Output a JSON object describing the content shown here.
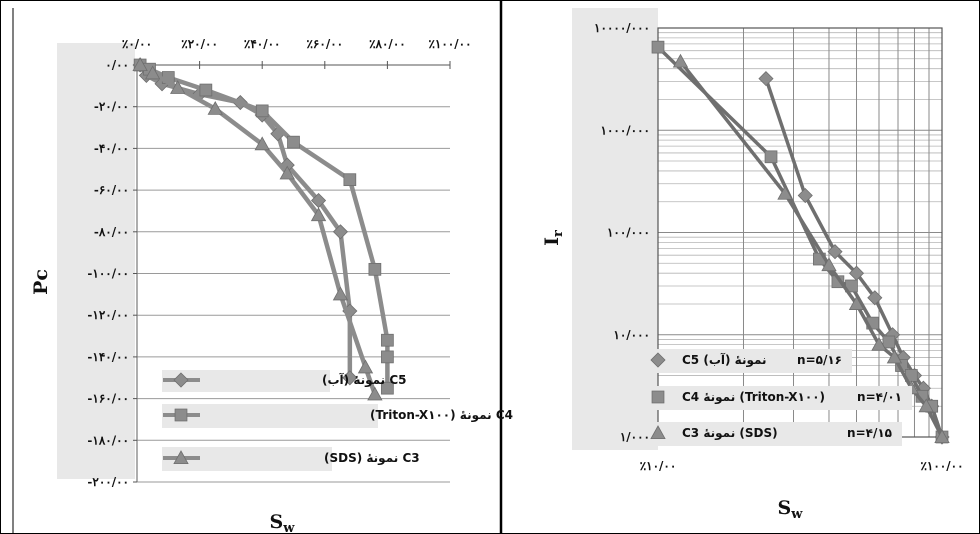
{
  "chart_data": [
    {
      "type": "line",
      "xlabel": "S",
      "xlabel_sub": "w",
      "ylabel": "Pc",
      "x_tick_labels": [
        "٪۰/۰۰",
        "٪۲۰/۰۰",
        "٪۴۰/۰۰",
        "٪۶۰/۰۰",
        "٪۸۰/۰۰",
        "٪۱۰۰/۰۰"
      ],
      "x_ticks": [
        0,
        20,
        40,
        60,
        80,
        100
      ],
      "y_tick_labels": [
        "۰/۰۰",
        "-۲۰/۰۰",
        "-۴۰/۰۰",
        "-۶۰/۰۰",
        "-۸۰/۰۰",
        "-۱۰۰/۰۰",
        "-۱۲۰/۰۰",
        "-۱۴۰/۰۰",
        "-۱۶۰/۰۰",
        "-۱۸۰/۰۰",
        "-۲۰۰/۰۰"
      ],
      "y_ticks": [
        0,
        -20,
        -40,
        -60,
        -80,
        -100,
        -120,
        -140,
        -160,
        -180,
        -200
      ],
      "xlim": [
        0,
        100
      ],
      "ylim": [
        -200,
        0
      ],
      "x_axis_position": "top",
      "grid": "horizontal",
      "legend_position": "bottom-left",
      "series": [
        {
          "name": "C5 نمونهٔ (آب)",
          "marker": "diamond",
          "color": "#8c8c8c",
          "x": [
            1,
            3,
            8,
            20,
            33,
            40,
            45,
            48,
            58,
            65,
            68,
            68
          ],
          "y": [
            0,
            -5,
            -9,
            -14,
            -18,
            -24,
            -33,
            -48,
            -65,
            -80,
            -118,
            -150
          ]
        },
        {
          "name": "C4 نمونهٔ (Triton-X۱۰۰)",
          "marker": "square",
          "color": "#8c8c8c",
          "x": [
            1,
            4,
            10,
            22,
            40,
            50,
            68,
            76,
            80,
            80,
            80
          ],
          "y": [
            0,
            -2,
            -6,
            -12,
            -22,
            -37,
            -55,
            -98,
            -132,
            -140,
            -155
          ]
        },
        {
          "name": "C3 نمونهٔ (SDS)",
          "marker": "triangle",
          "color": "#8c8c8c",
          "x": [
            1,
            5,
            13,
            25,
            40,
            48,
            58,
            65,
            73,
            76
          ],
          "y": [
            0,
            -4,
            -11,
            -21,
            -38,
            -52,
            -72,
            -110,
            -145,
            -158
          ]
        }
      ]
    },
    {
      "type": "line",
      "xlabel": "S",
      "xlabel_sub": "w",
      "ylabel": "I",
      "ylabel_sub": "r",
      "x_scale": "log",
      "y_scale": "log",
      "x_tick_labels": [
        "٪۱۰/۰۰",
        "٪۱۰۰/۰۰"
      ],
      "x_ticks": [
        10,
        100
      ],
      "y_tick_labels": [
        "۱/۰۰۰",
        "۱۰/۰۰۰",
        "۱۰۰/۰۰۰",
        "۱۰۰۰/۰۰۰",
        "۱۰۰۰۰/۰۰۰"
      ],
      "y_ticks": [
        1,
        10,
        100,
        1000,
        10000
      ],
      "xlim": [
        10,
        100
      ],
      "ylim": [
        1,
        10000
      ],
      "grid": "both",
      "legend_position": "bottom-left",
      "series": [
        {
          "name": "C5 نمونهٔ (آب)",
          "n_label": "n=۵/۱۶",
          "marker": "diamond",
          "color": "#8c8c8c",
          "x": [
            24,
            33,
            42,
            50,
            58,
            67,
            73,
            80,
            86,
            92,
            100
          ],
          "y": [
            3200,
            230,
            65,
            40,
            23,
            10,
            6,
            4,
            3,
            2,
            1
          ]
        },
        {
          "name": "C4 نمونهٔ (Triton-X۱۰۰)",
          "n_label": "n=۴/۰۱",
          "marker": "square",
          "color": "#8c8c8c",
          "x": [
            10,
            25,
            37,
            43,
            48,
            57,
            65,
            72,
            78,
            85,
            92,
            100
          ],
          "y": [
            6500,
            550,
            55,
            33,
            30,
            13,
            8.5,
            5,
            4,
            2.5,
            2,
            1
          ]
        },
        {
          "name": "C3 نمونهٔ (SDS)",
          "n_label": "n=۴/۱۵",
          "marker": "triangle",
          "color": "#8c8c8c",
          "x": [
            12,
            28,
            40,
            50,
            60,
            68,
            78,
            88,
            100
          ],
          "y": [
            4700,
            240,
            48,
            20,
            8,
            6,
            3,
            2,
            1
          ]
        }
      ]
    }
  ]
}
